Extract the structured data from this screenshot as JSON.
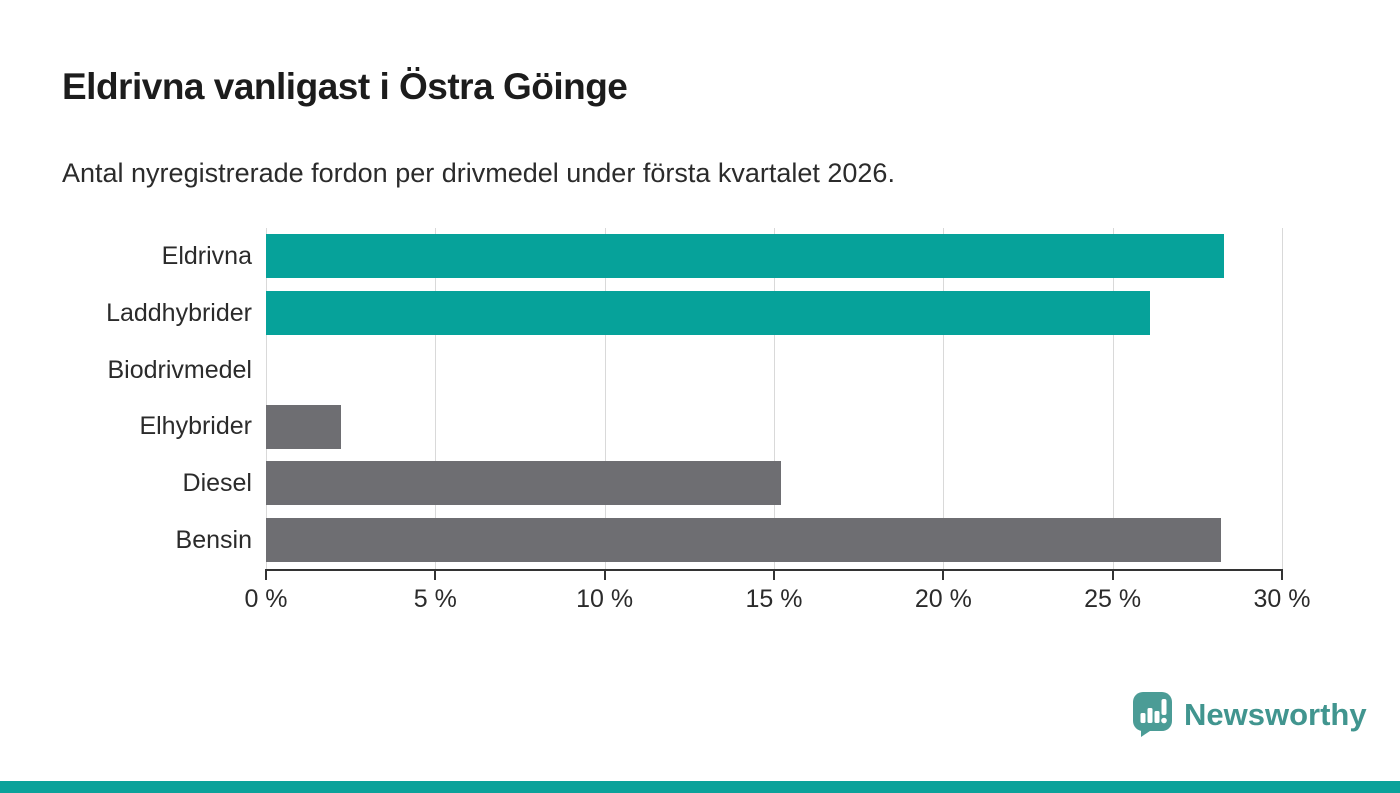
{
  "title": "Eldrivna vanligast i Östra Göinge",
  "subtitle": "Antal nyregistrerade fordon per drivmedel under första kvartalet 2026.",
  "chart_data": {
    "type": "bar",
    "orientation": "horizontal",
    "categories": [
      "Eldrivna",
      "Laddhybrider",
      "Biodrivmedel",
      "Elhybrider",
      "Diesel",
      "Bensin"
    ],
    "values": [
      28.3,
      26.1,
      0,
      2.2,
      15.2,
      28.2
    ],
    "bar_colors": [
      "#06a29a",
      "#06a29a",
      "#6e6e72",
      "#6e6e72",
      "#6e6e72",
      "#6e6e72"
    ],
    "title": "Eldrivna vanligast i Östra Göinge",
    "xlabel": "",
    "ylabel": "",
    "xlim": [
      0,
      30
    ],
    "x_tick_values": [
      0,
      5,
      10,
      15,
      20,
      25,
      30
    ],
    "x_tick_labels": [
      "0 %",
      "5 %",
      "10 %",
      "15 %",
      "20 %",
      "25 %",
      "30 %"
    ],
    "grid": true,
    "legend": "none"
  },
  "colors": {
    "accent_teal": "#06a29a",
    "neutral_gray": "#6e6e72",
    "grid_gray": "#d9d9d9",
    "axis_dark": "#333333",
    "logo_teal": "#4b9c96",
    "footer_teal": "#0ba29a"
  },
  "branding": {
    "logo_text": "Newsworthy"
  }
}
